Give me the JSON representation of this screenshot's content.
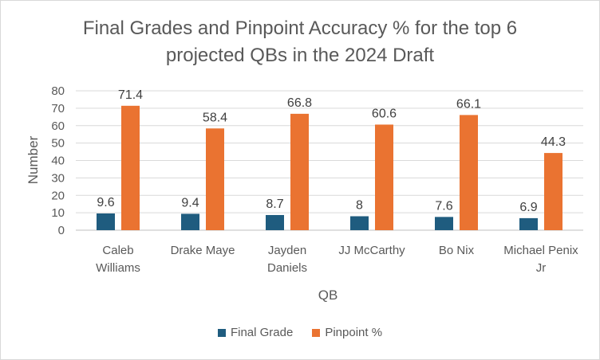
{
  "chart_data": {
    "type": "bar",
    "title_lines": [
      "Final Grades and Pinpoint Accuracy % for the top 6",
      "projected QBs in the 2024 Draft"
    ],
    "xlabel": "QB",
    "ylabel": "Number",
    "ylim": [
      0,
      80
    ],
    "yticks": [
      0,
      10,
      20,
      30,
      40,
      50,
      60,
      70,
      80
    ],
    "grid": true,
    "legend_position": "bottom",
    "categories": [
      [
        "Caleb",
        "Williams"
      ],
      [
        "Drake Maye"
      ],
      [
        "Jayden",
        "Daniels"
      ],
      [
        "JJ McCarthy"
      ],
      [
        "Bo Nix"
      ],
      [
        "Michael Penix",
        "Jr"
      ]
    ],
    "series": [
      {
        "name": "Final Grade",
        "color": "#1f5c7f",
        "values": [
          9.6,
          9.4,
          8.7,
          8,
          7.6,
          6.9
        ],
        "labels": [
          "9.6",
          "9.4",
          "8.7",
          "8",
          "7.6",
          "6.9"
        ]
      },
      {
        "name": "Pinpoint %",
        "color": "#ea7331",
        "values": [
          71.4,
          58.4,
          66.8,
          60.6,
          66.1,
          44.3
        ],
        "labels": [
          "71.4",
          "58.4",
          "66.8",
          "60.6",
          "66.1",
          "44.3"
        ]
      }
    ]
  }
}
